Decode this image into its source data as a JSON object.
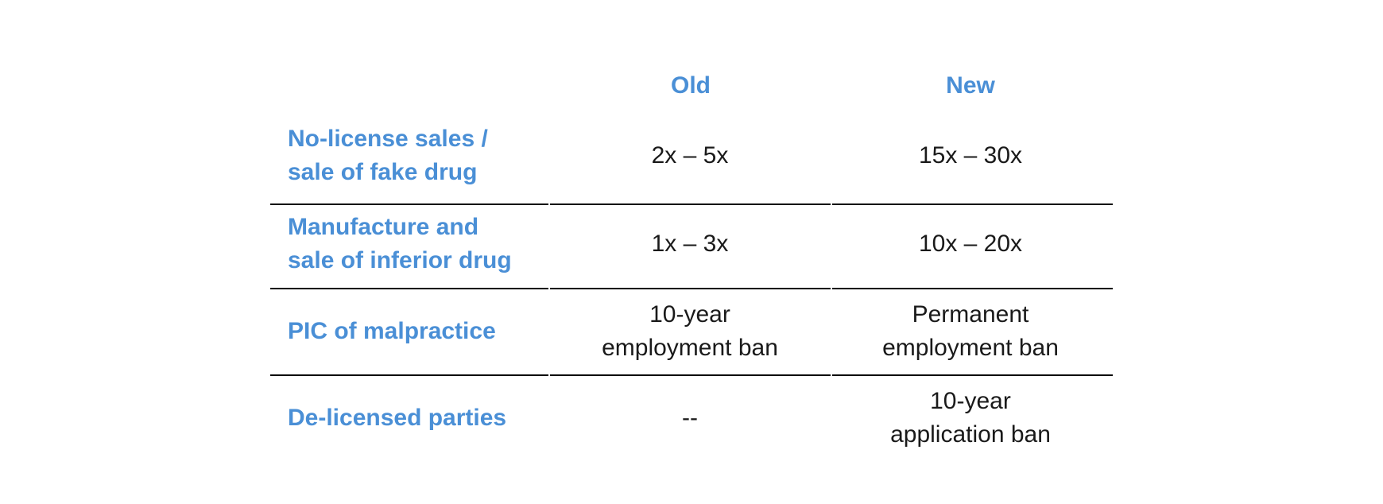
{
  "header": {
    "old": "Old",
    "new": "New"
  },
  "rows": [
    {
      "label": "No-license sales /\nsale of fake drug",
      "old": "2x – 5x",
      "new": "15x – 30x"
    },
    {
      "label": "Manufacture and\nsale of inferior drug",
      "old": "1x – 3x",
      "new": "10x – 20x"
    },
    {
      "label": "PIC of malpractice",
      "old": "10-year\nemployment ban",
      "new": "Permanent\nemployment ban"
    },
    {
      "label": "De-licensed parties",
      "old": "--",
      "new": "10-year\napplication ban"
    }
  ],
  "colors": {
    "accent": "#4a8fd6",
    "text": "#1a1a1a",
    "rule": "#000000"
  }
}
